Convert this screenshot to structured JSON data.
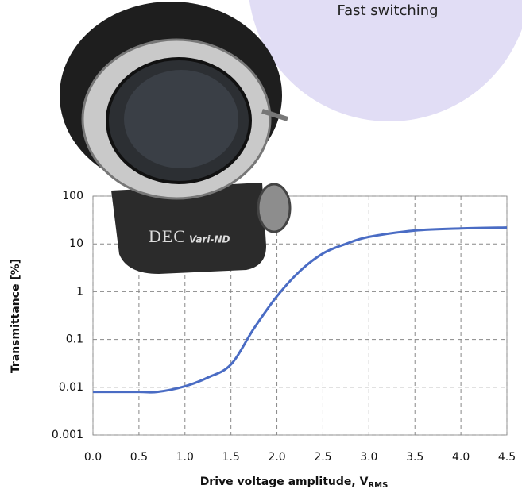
{
  "callout": "Fast switching",
  "photo_label": [
    "DEC",
    "Vari-ND"
  ],
  "chart_data": {
    "type": "line",
    "y_label": "Transmittance [%]",
    "x_label": "Drive voltage amplitude, V",
    "x_label_subscript": "RMS",
    "x": [
      0,
      0.5,
      0.7,
      1.0,
      1.25,
      1.5,
      1.75,
      2.0,
      2.25,
      2.5,
      2.75,
      3.0,
      3.5,
      4.0,
      4.5
    ],
    "series": [
      {
        "color": "#4a6cc4",
        "values": [
          0.008,
          0.008,
          0.008,
          0.0105,
          0.016,
          0.03,
          0.17,
          0.8,
          2.7,
          6.3,
          10,
          14,
          19,
          21,
          22
        ]
      }
    ],
    "xlim": [
      0,
      4.5
    ],
    "xticks": [
      {
        "value": 0,
        "label": "0.0"
      },
      0.5,
      {
        "value": 1,
        "label": "1.0"
      },
      1.5,
      {
        "value": 2,
        "label": "2.0"
      },
      2.5,
      {
        "value": 3,
        "label": "3.0"
      },
      3.5,
      {
        "value": 4,
        "label": "4.0"
      },
      4.5
    ],
    "ylim": [
      0.001,
      100
    ],
    "yticks": [
      0.001,
      0.01,
      0.1,
      1,
      10,
      100
    ],
    "log_y": true,
    "grid": true
  }
}
